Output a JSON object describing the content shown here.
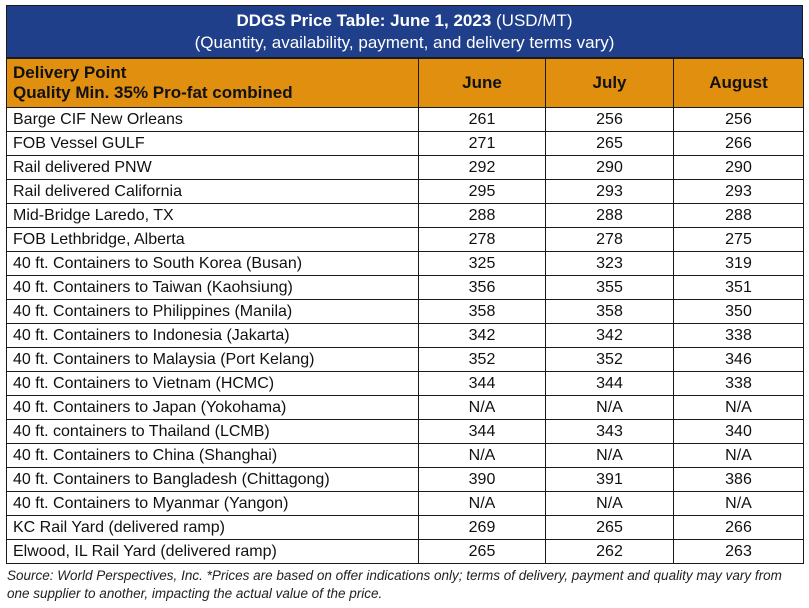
{
  "header": {
    "title_bold": "DDGS Price Table: June 1, 2023",
    "title_unit": "(USD/MT)",
    "subtitle": "(Quantity, availability, payment, and delivery terms vary)"
  },
  "columns": {
    "point_line1": "Delivery Point",
    "point_line2": "Quality Min. 35% Pro-fat combined",
    "months": [
      "June",
      "July",
      "August"
    ]
  },
  "rows": [
    {
      "point": "Barge CIF New Orleans",
      "june": "261",
      "july": "256",
      "august": "256"
    },
    {
      "point": "FOB Vessel GULF",
      "june": "271",
      "july": "265",
      "august": "266"
    },
    {
      "point": "Rail delivered PNW",
      "june": "292",
      "july": "290",
      "august": "290"
    },
    {
      "point": "Rail delivered California",
      "june": "295",
      "july": "293",
      "august": "293"
    },
    {
      "point": "Mid-Bridge Laredo, TX",
      "june": "288",
      "july": "288",
      "august": "288"
    },
    {
      "point": "FOB Lethbridge, Alberta",
      "june": "278",
      "july": "278",
      "august": "275"
    },
    {
      "point": "40 ft. Containers to South Korea (Busan)",
      "june": "325",
      "july": "323",
      "august": "319"
    },
    {
      "point": "40 ft. Containers to Taiwan (Kaohsiung)",
      "june": "356",
      "july": "355",
      "august": "351"
    },
    {
      "point": "40 ft. Containers to Philippines (Manila)",
      "june": "358",
      "july": "358",
      "august": "350"
    },
    {
      "point": "40 ft. Containers to Indonesia (Jakarta)",
      "june": "342",
      "july": "342",
      "august": "338"
    },
    {
      "point": "40 ft. Containers to Malaysia (Port Kelang)",
      "june": "352",
      "july": "352",
      "august": "346"
    },
    {
      "point": "40 ft. Containers to Vietnam (HCMC)",
      "june": "344",
      "july": "344",
      "august": "338"
    },
    {
      "point": "40 ft. Containers to Japan (Yokohama)",
      "june": "N/A",
      "july": "N/A",
      "august": "N/A"
    },
    {
      "point": "40 ft. containers to Thailand (LCMB)",
      "june": "344",
      "july": "343",
      "august": "340"
    },
    {
      "point": "40 ft. Containers to China (Shanghai)",
      "june": "N/A",
      "july": "N/A",
      "august": "N/A"
    },
    {
      "point": "40 ft. Containers to Bangladesh (Chittagong)",
      "june": "390",
      "july": "391",
      "august": "386"
    },
    {
      "point": "40 ft. Containers to Myanmar (Yangon)",
      "june": "N/A",
      "july": "N/A",
      "august": "N/A"
    },
    {
      "point": "KC Rail Yard (delivered ramp)",
      "june": "269",
      "july": "265",
      "august": "266"
    },
    {
      "point": "Elwood, IL Rail Yard (delivered ramp)",
      "june": "265",
      "july": "262",
      "august": "263"
    }
  ],
  "footer": {
    "source": "Source: World Perspectives, Inc. *Prices are based on offer indications only; terms of delivery, payment and quality may vary from one supplier to another, impacting the actual value of the price."
  },
  "colors": {
    "title_bg": "#1f3f8a",
    "header_bg": "#e08f0f"
  }
}
